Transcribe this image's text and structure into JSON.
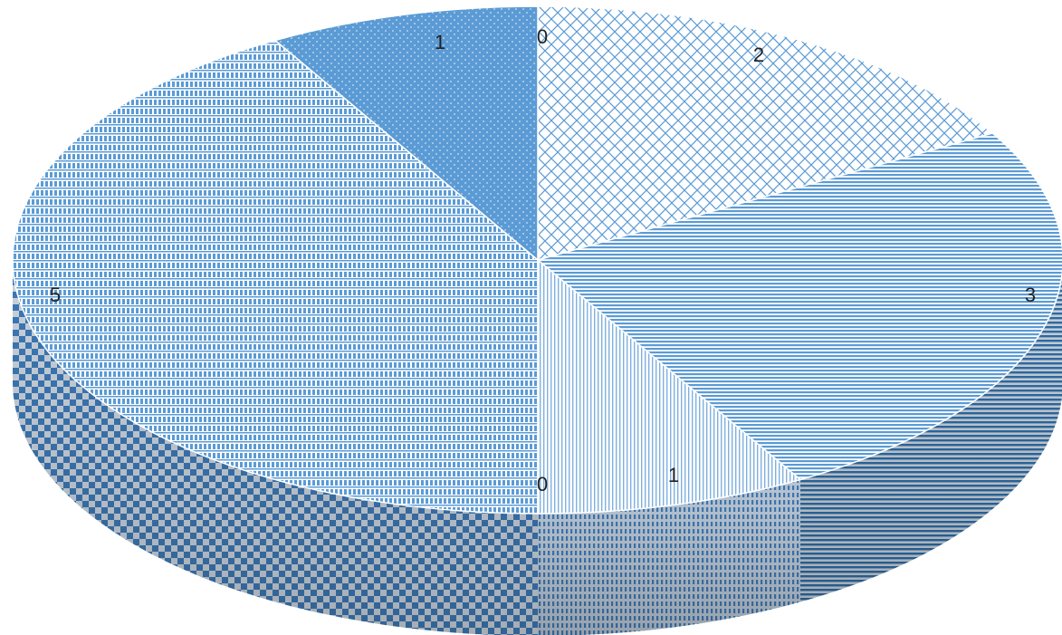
{
  "chart_data": {
    "type": "pie",
    "style": "3d",
    "legend": "none",
    "slices": [
      {
        "label": "0",
        "value": 0,
        "pattern": "crosshatch-light"
      },
      {
        "label": "2",
        "value": 2,
        "pattern": "diagonal-crosshatch"
      },
      {
        "label": "3",
        "value": 3,
        "pattern": "horizontal-lines"
      },
      {
        "label": "1",
        "value": 1,
        "pattern": "vertical-lines-light"
      },
      {
        "label": "0",
        "value": 0,
        "pattern": "plain"
      },
      {
        "label": "5",
        "value": 5,
        "pattern": "checker"
      },
      {
        "label": "1",
        "value": 1,
        "pattern": "dotted-dark"
      }
    ],
    "colors": {
      "base": "#5b9bd5",
      "dark": "#2e6da8",
      "light": "#e8f1fa"
    }
  }
}
